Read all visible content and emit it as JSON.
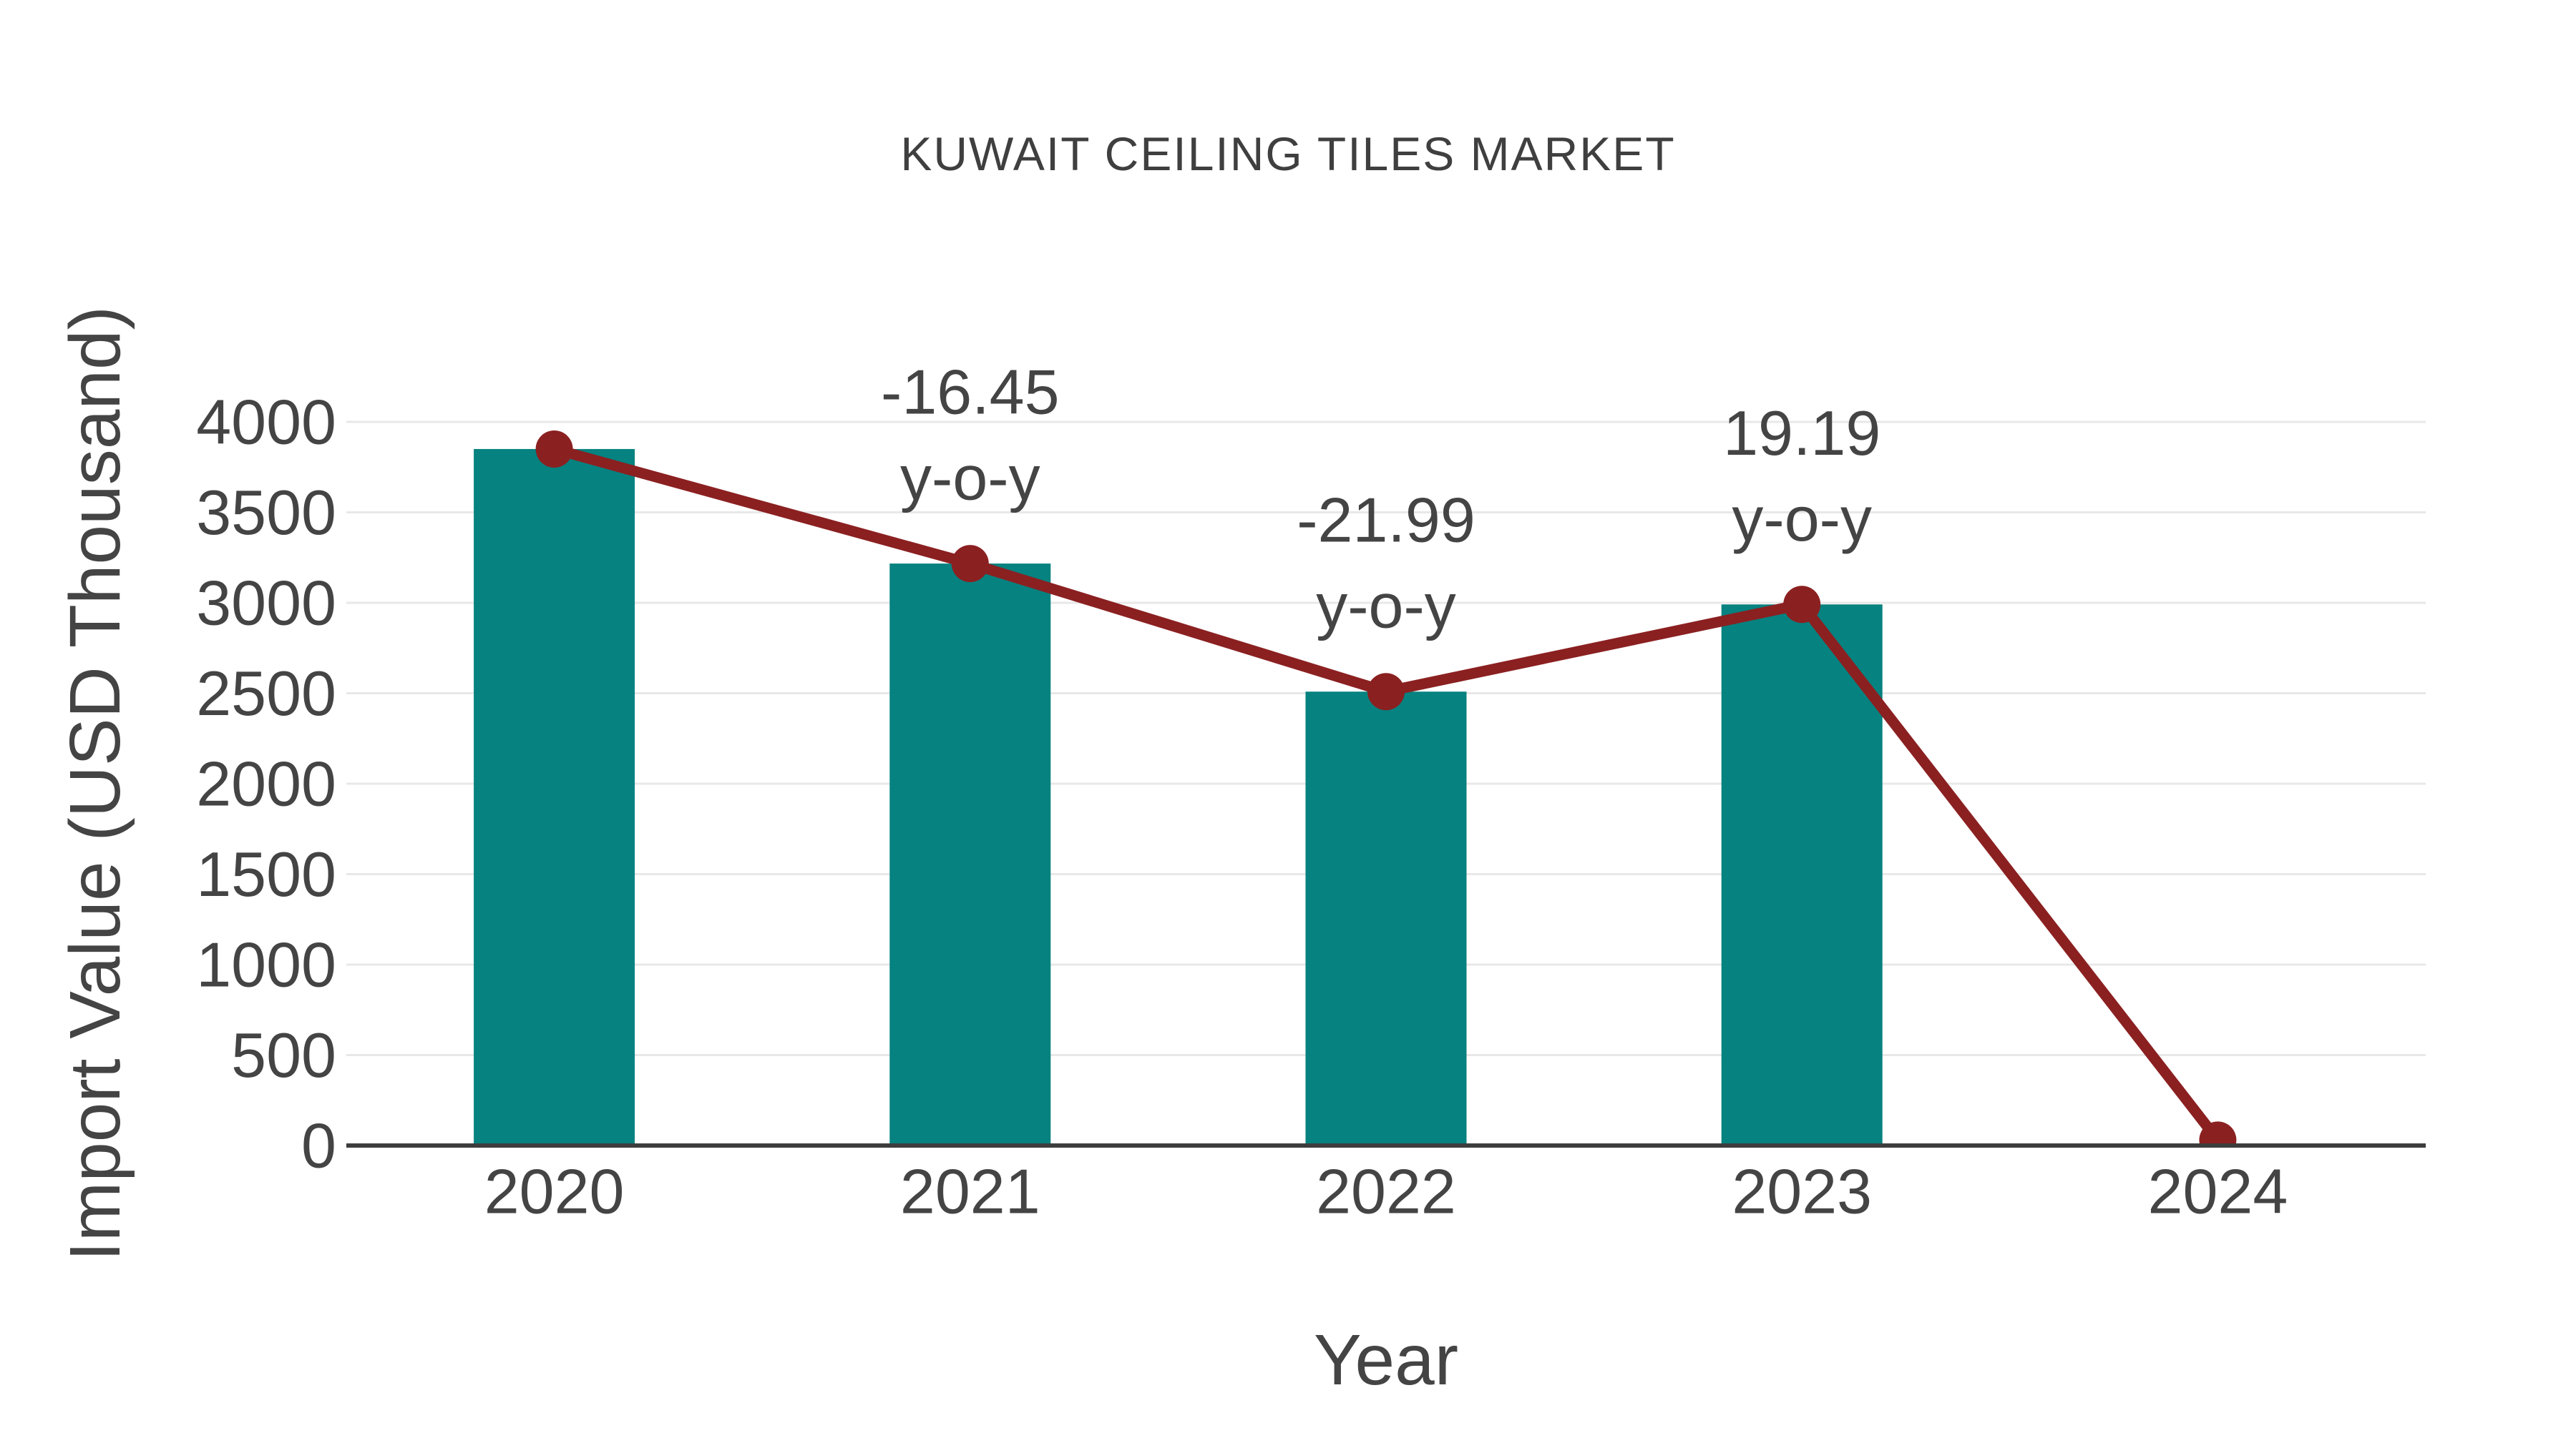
{
  "figure": {
    "title": "KUWAIT CEILING TILES MARKET",
    "x_axis_title": "Year",
    "y_axis_title": "Import Value (USD Thousand)"
  },
  "chart_data": {
    "type": "bar+line",
    "title": "KUWAIT CEILING TILES MARKET",
    "xlabel": "Year",
    "ylabel": "Import Value (USD Thousand)",
    "categories": [
      "2020",
      "2021",
      "2022",
      "2023",
      "2024"
    ],
    "series": [
      {
        "name": "Import Value bars",
        "type": "bar",
        "color": "#068280",
        "values": [
          3850,
          3217,
          2509,
          2991,
          null
        ]
      },
      {
        "name": "Import Value trend line",
        "type": "line",
        "color": "#8b2021",
        "values": [
          3850,
          3217,
          2509,
          2991,
          30
        ]
      }
    ],
    "annotations": [
      {
        "category": "2021",
        "line1": "-16.45",
        "line2": "y-o-y"
      },
      {
        "category": "2022",
        "line1": "-21.99",
        "line2": "y-o-y"
      },
      {
        "category": "2023",
        "line1": "19.19",
        "line2": "y-o-y"
      }
    ],
    "ylim": [
      0,
      4000
    ],
    "yticks": [
      0,
      500,
      1000,
      1500,
      2000,
      2500,
      3000,
      3500,
      4000
    ],
    "xticks": [
      "2020",
      "2021",
      "2022",
      "2023",
      "2024"
    ],
    "grid": true,
    "legend_position": "none",
    "colors": {
      "bar": "#068280",
      "line": "#8b2021",
      "marker": "#8b2021",
      "grid": "#e8e8e8",
      "axis_line": "#3d3d3d",
      "tick_text": "#444444",
      "title_text": "#3f3f3f"
    }
  }
}
